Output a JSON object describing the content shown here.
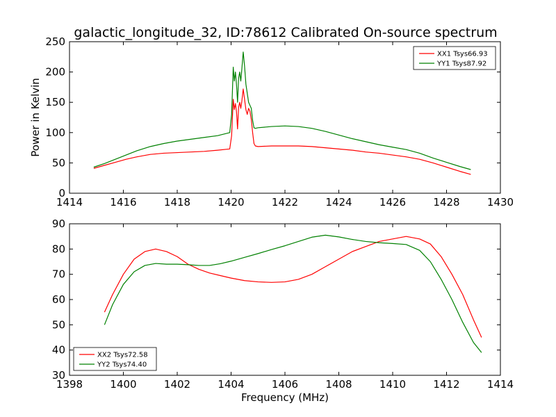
{
  "figure": {
    "title": "galactic_longitude_32, ID:78612 Calibrated On-source spectrum"
  },
  "chart_data": [
    {
      "type": "line",
      "ylabel": "Power in Kelvin",
      "xlabel": "",
      "xlim": [
        1414,
        1430
      ],
      "ylim": [
        0,
        250
      ],
      "xticks": [
        1414,
        1416,
        1418,
        1420,
        1422,
        1424,
        1426,
        1428,
        1430
      ],
      "yticks": [
        0,
        50,
        100,
        150,
        200,
        250
      ],
      "legend_position": "top-right",
      "series": [
        {
          "name": "XX1 Tsys66.93",
          "color": "#ff0000",
          "x": [
            1414.9,
            1415.3,
            1415.7,
            1416.1,
            1416.5,
            1417.0,
            1417.5,
            1418.0,
            1418.5,
            1419.0,
            1419.5,
            1419.95,
            1420.02,
            1420.08,
            1420.12,
            1420.16,
            1420.2,
            1420.24,
            1420.28,
            1420.32,
            1420.36,
            1420.4,
            1420.45,
            1420.5,
            1420.55,
            1420.6,
            1420.65,
            1420.7,
            1420.75,
            1420.8,
            1420.85,
            1420.9,
            1421.0,
            1421.5,
            1422.0,
            1422.5,
            1423.0,
            1423.5,
            1424.0,
            1424.5,
            1425.0,
            1425.5,
            1426.0,
            1426.5,
            1427.0,
            1427.5,
            1428.0,
            1428.5,
            1428.9
          ],
          "y": [
            41,
            46,
            51,
            56,
            60,
            64,
            66,
            67,
            68,
            69,
            71,
            73,
            95,
            155,
            138,
            148,
            135,
            106,
            142,
            150,
            140,
            152,
            172,
            155,
            138,
            130,
            140,
            135,
            122,
            100,
            82,
            78,
            77,
            78,
            78,
            78,
            77,
            75,
            73,
            71,
            68,
            66,
            63,
            60,
            56,
            50,
            43,
            36,
            31
          ]
        },
        {
          "name": "YY1 Tsys87.92",
          "color": "#008000",
          "x": [
            1414.9,
            1415.3,
            1415.7,
            1416.1,
            1416.5,
            1417.0,
            1417.5,
            1418.0,
            1418.5,
            1419.0,
            1419.5,
            1419.95,
            1420.02,
            1420.08,
            1420.12,
            1420.16,
            1420.2,
            1420.24,
            1420.28,
            1420.32,
            1420.36,
            1420.4,
            1420.45,
            1420.5,
            1420.55,
            1420.6,
            1420.65,
            1420.7,
            1420.75,
            1420.8,
            1420.85,
            1420.9,
            1421.0,
            1421.5,
            1422.0,
            1422.5,
            1423.0,
            1423.5,
            1424.0,
            1424.5,
            1425.0,
            1425.5,
            1426.0,
            1426.5,
            1427.0,
            1427.5,
            1428.0,
            1428.5,
            1428.9
          ],
          "y": [
            43,
            49,
            56,
            63,
            70,
            77,
            82,
            86,
            89,
            92,
            95,
            100,
            130,
            208,
            185,
            200,
            180,
            150,
            190,
            200,
            185,
            205,
            233,
            210,
            180,
            165,
            150,
            145,
            140,
            120,
            108,
            107,
            108,
            110,
            111,
            110,
            107,
            102,
            96,
            90,
            85,
            80,
            76,
            72,
            66,
            58,
            51,
            44,
            39
          ]
        }
      ]
    },
    {
      "type": "line",
      "ylabel": "",
      "xlabel": "Frequency (MHz)",
      "xlim": [
        1398,
        1414
      ],
      "ylim": [
        30,
        90
      ],
      "xticks": [
        1398,
        1400,
        1402,
        1404,
        1406,
        1408,
        1410,
        1412,
        1414
      ],
      "yticks": [
        30,
        40,
        50,
        60,
        70,
        80,
        90
      ],
      "legend_position": "bottom-left",
      "series": [
        {
          "name": "XX2 Tsys72.58",
          "color": "#ff0000",
          "x": [
            1399.3,
            1399.6,
            1400.0,
            1400.4,
            1400.8,
            1401.2,
            1401.6,
            1402.0,
            1402.4,
            1402.8,
            1403.2,
            1403.6,
            1404.0,
            1404.5,
            1405.0,
            1405.5,
            1406.0,
            1406.5,
            1407.0,
            1407.5,
            1408.0,
            1408.5,
            1409.0,
            1409.5,
            1410.0,
            1410.5,
            1411.0,
            1411.4,
            1411.8,
            1412.2,
            1412.6,
            1413.0,
            1413.3
          ],
          "y": [
            55,
            62,
            70,
            76,
            79,
            80,
            79,
            77,
            74,
            72,
            70.5,
            69.5,
            68.5,
            67.5,
            67,
            66.8,
            67,
            68,
            70,
            73,
            76,
            79,
            81,
            83,
            84,
            85,
            84,
            82,
            77,
            70,
            62,
            52,
            45
          ],
          "x_end": 1413.3
        },
        {
          "name": "YY2 Tsys74.40",
          "color": "#008000",
          "x": [
            1399.3,
            1399.6,
            1400.0,
            1400.4,
            1400.8,
            1401.2,
            1401.6,
            1402.0,
            1402.4,
            1402.8,
            1403.2,
            1403.6,
            1404.0,
            1404.5,
            1405.0,
            1405.5,
            1406.0,
            1406.5,
            1407.0,
            1407.5,
            1408.0,
            1408.5,
            1409.0,
            1409.5,
            1410.0,
            1410.5,
            1411.0,
            1411.4,
            1411.8,
            1412.2,
            1412.6,
            1413.0,
            1413.3
          ],
          "y": [
            50,
            58,
            66,
            71,
            73.5,
            74.3,
            74,
            74,
            73.8,
            73.5,
            73.5,
            74.2,
            75.2,
            76.7,
            78.2,
            79.8,
            81.3,
            83,
            84.7,
            85.5,
            84.8,
            83.8,
            83,
            82.5,
            82.2,
            81.8,
            79.5,
            75,
            68,
            60,
            51,
            43,
            39
          ]
        }
      ]
    }
  ]
}
